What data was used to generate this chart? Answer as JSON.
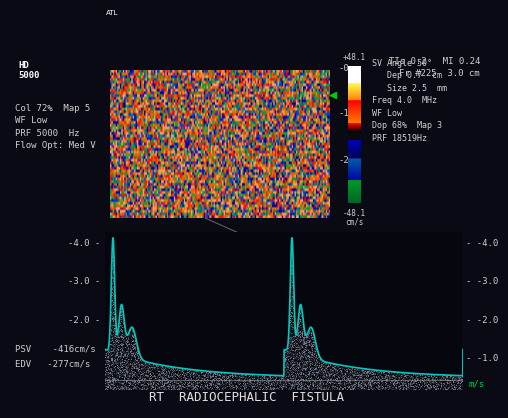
{
  "bg_color": "#0a0a14",
  "title": "RT  RADIOCEPHALIC  FISTULA",
  "title_color": "#e0e0e0",
  "title_fontsize": 9,
  "top_right_text": "TIs 0.2   MI 0.24\nFr #225  3.0 cm",
  "top_left_text": "Col 72%  Map 5\nWF Low\nPRF 5000  Hz\nFlow Opt: Med V",
  "left_labels_doppler": [
    "-4.0",
    "-3.0",
    "-2.0"
  ],
  "right_labels_doppler": [
    "-4.0",
    "-3.0",
    "-2.0",
    "-1.0"
  ],
  "psv_text": "PSV    -416cm/s",
  "edv_text": "EDV   -277cm/s",
  "sv_info": "SV Angle 50°\n   Dep 0.7  cm\n   Size 2.5  mm\nFreq 4.0  MHz\nWF Low\nDop 68%  Map 3\nPRF 18519Hz",
  "colorbar_top": "+48.1",
  "colorbar_bottom": "-48.1",
  "colorbar_unit": "cm/s",
  "waveform_color": "#00d4c8",
  "waveform_linewidth": 1.2
}
